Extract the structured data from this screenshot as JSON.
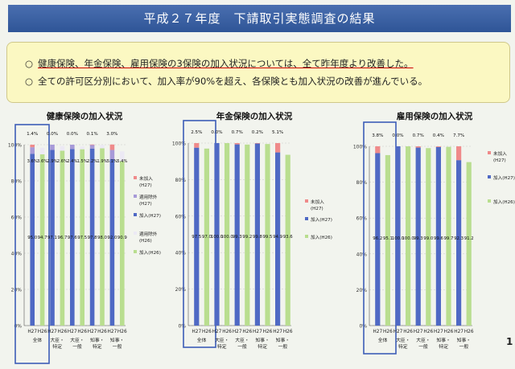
{
  "header": {
    "title": "平成２７年度　下請取引実態調査の結果"
  },
  "summary": {
    "bullet": "○",
    "line1": "健康保険、年金保険、雇用保険の3保険の加入状況については、全て昨年度より改善した。",
    "line2": "全ての許可区分別において、加入率が90%を超え、各保険とも加入状況の改善が進んでいる。"
  },
  "page_number": "1",
  "colors": {
    "blue": "#4f69c4",
    "green": "#b9de8f",
    "red": "#ef8a8a",
    "purple": "#a79ad8",
    "light": "#ece9f4",
    "highlight": "#3d5db8"
  },
  "chart_data": [
    {
      "type": "bar",
      "title": "健康保険の加入状況",
      "ylim": [
        0,
        100
      ],
      "yticks": [
        "0%",
        "20%",
        "40%",
        "60%",
        "80%",
        "100%"
      ],
      "x": [
        "H27",
        "H26",
        "H27",
        "H26",
        "H27",
        "H26",
        "H27",
        "H26",
        "H27",
        "H26"
      ],
      "groups": [
        "全体",
        "大臣・特定",
        "大臣・一般",
        "知事・特定",
        "知事・一般"
      ],
      "series": [
        {
          "name": "加入(H27)",
          "values": [
            95.0,
            null,
            97.1,
            null,
            97.6,
            null,
            97.8,
            null,
            92.0,
            null
          ]
        },
        {
          "name": "適用除外(H27)",
          "values": [
            3.6,
            null,
            2.9,
            null,
            2.4,
            null,
            2.2,
            null,
            5.1,
            null
          ]
        },
        {
          "name": "未加入(H27)",
          "values": [
            1.4,
            null,
            0.0,
            null,
            0.0,
            null,
            0.1,
            null,
            3.0,
            null
          ]
        },
        {
          "name": "加入(H26)",
          "values": [
            null,
            94.7,
            null,
            96.7,
            null,
            97.5,
            null,
            98.0,
            null,
            90.9
          ]
        },
        {
          "name": "適用除外(H26)",
          "values": [
            null,
            3.6,
            null,
            2.6,
            null,
            1.5,
            null,
            1.9,
            null,
            5.4
          ]
        }
      ],
      "pct_labels_top": [
        "1.4%",
        "0.0%",
        "0.0%",
        "0.1%",
        "3.0%"
      ],
      "mid_labels": [
        "3.6%",
        "3.6%",
        "2.9%",
        "2.6%",
        "2.4%",
        "1.5%",
        "2.2%",
        "1.9%",
        "5.1%",
        "5.4%"
      ],
      "value_labels": [
        "95.0",
        "94.7",
        "97.1",
        "96.7",
        "97.6",
        "97.5",
        "97.8",
        "98.0",
        "92.0",
        "90.9"
      ],
      "legend": [
        "未加入\n(H27)",
        "適用除外\n(H27)",
        "加入(H27)",
        "適用除外\n(H26)",
        "加入(H26)"
      ]
    },
    {
      "type": "bar",
      "title": "年金保険の加入状況",
      "ylim": [
        0,
        100
      ],
      "yticks": [
        "0%",
        "20%",
        "40%",
        "60%",
        "80%",
        "100%"
      ],
      "x": [
        "H27",
        "H26",
        "H27",
        "H26",
        "H27",
        "H26",
        "H27",
        "H26",
        "H27",
        "H26"
      ],
      "groups": [
        "全体",
        "大臣・特定",
        "大臣・一般",
        "知事・特定",
        "知事・一般"
      ],
      "series": [
        {
          "name": "加入(H27)",
          "values": [
            97.5,
            null,
            100.0,
            null,
            99.3,
            null,
            99.8,
            null,
            94.9,
            null
          ]
        },
        {
          "name": "未加入(H27)",
          "values": [
            2.5,
            null,
            0.0,
            null,
            0.7,
            null,
            0.2,
            null,
            5.1,
            null
          ]
        },
        {
          "name": "加入(H26)",
          "values": [
            null,
            97.0,
            null,
            100.0,
            null,
            99.2,
            null,
            99.5,
            null,
            93.6
          ]
        }
      ],
      "pct_labels_top": [
        "2.5%",
        "0.0%",
        "0.7%",
        "0.2%",
        "5.1%"
      ],
      "value_labels": [
        "97.5",
        "97.0",
        "100.0",
        "100.0",
        "99.3",
        "99.2",
        "99.8",
        "99.5",
        "94.9",
        "93.6"
      ],
      "legend": [
        "未加入\n(H27)",
        "加入(H27)",
        "加入(H26)"
      ]
    },
    {
      "type": "bar",
      "title": "雇用保険の加入状況",
      "ylim": [
        0,
        100
      ],
      "yticks": [
        "0%",
        "20%",
        "40%",
        "60%",
        "80%",
        "100%"
      ],
      "x": [
        "H27",
        "H26",
        "H27",
        "H26",
        "H27",
        "H26",
        "H27",
        "H26",
        "H27",
        "H26"
      ],
      "groups": [
        "全体",
        "大臣・特定",
        "大臣・一般",
        "知事・特定",
        "知事・一般"
      ],
      "series": [
        {
          "name": "加入(H27)",
          "values": [
            96.2,
            null,
            100.0,
            null,
            99.3,
            null,
            99.6,
            null,
            92.3,
            null
          ]
        },
        {
          "name": "未加入(H27)",
          "values": [
            3.8,
            null,
            0.0,
            null,
            0.7,
            null,
            0.4,
            null,
            7.7,
            null
          ]
        },
        {
          "name": "加入(H26)",
          "values": [
            null,
            95.1,
            null,
            100.0,
            null,
            99.0,
            null,
            99.7,
            null,
            91.2
          ]
        }
      ],
      "pct_labels_top": [
        "3.8%",
        "0.0%",
        "0.7%",
        "0.4%",
        "7.7%"
      ],
      "value_labels": [
        "96.2",
        "95.1",
        "100.0",
        "100.0",
        "99.3",
        "99.0",
        "99.6",
        "99.7",
        "92.3",
        "91.2"
      ],
      "legend": [
        "未加入\n(H27)",
        "加入(H27)",
        "加入(H26)"
      ]
    }
  ]
}
